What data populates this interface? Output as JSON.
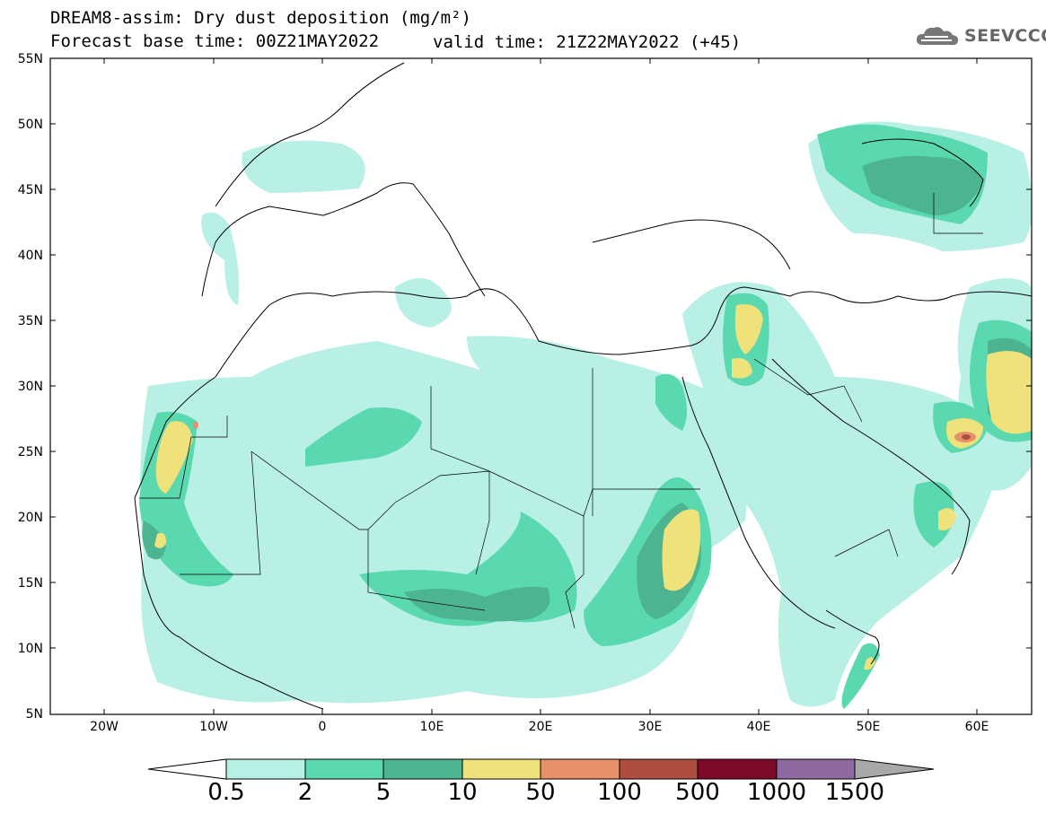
{
  "header": {
    "title": "DREAM8-assim: Dry dust deposition (mg/m²)",
    "base_time": "Forecast base time: 00Z21MAY2022",
    "valid_time": "valid time: 21Z22MAY2022 (+45)"
  },
  "logo": {
    "text": "SEEVCCC",
    "icon": "cloud-icon"
  },
  "map": {
    "lat_labels": [
      "55N",
      "50N",
      "45N",
      "40N",
      "35N",
      "30N",
      "25N",
      "20N",
      "15N",
      "10N",
      "5N"
    ],
    "lon_labels": [
      "20W",
      "10W",
      "0",
      "10E",
      "20E",
      "30E",
      "40E",
      "50E",
      "60E"
    ]
  },
  "colorbar": {
    "labels": [
      "0.5",
      "2",
      "5",
      "10",
      "50",
      "100",
      "500",
      "1000",
      "1500"
    ],
    "colors": [
      "#b8f0e6",
      "#5ad8b0",
      "#4cb490",
      "#f0e27a",
      "#e8906a",
      "#ae4e40",
      "#7e0a2a",
      "#8e6aa0",
      "#a8a8a8"
    ]
  },
  "palette": {
    "coast": "#000000",
    "sea": "#ffffff"
  }
}
